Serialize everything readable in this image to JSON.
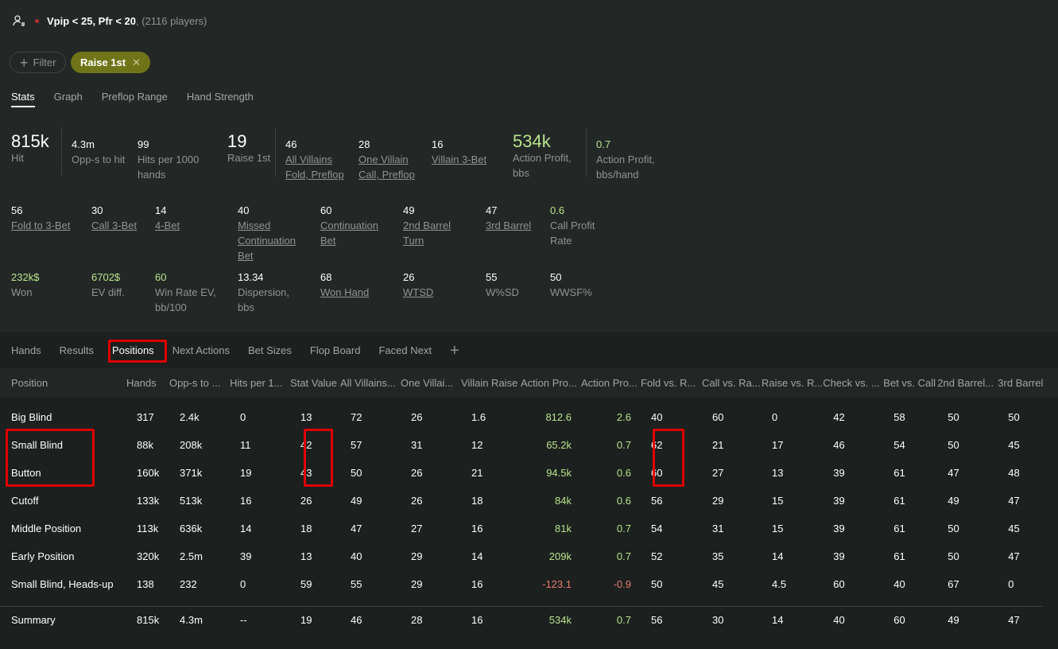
{
  "header": {
    "icon": "users-filter-icon",
    "title": "Vpip < 25, Pfr < 20",
    "count": ", (2116 players)"
  },
  "filters": {
    "add_label": "Filter",
    "active": "Raise 1st"
  },
  "top_tabs": [
    {
      "label": "Stats",
      "selected": true
    },
    {
      "label": "Graph"
    },
    {
      "label": "Preflop Range"
    },
    {
      "label": "Hand Strength"
    }
  ],
  "stats": [
    {
      "v": "815k",
      "l": "Hit",
      "big": true
    },
    {
      "v": "4.3m",
      "l": "Opp-s to hit"
    },
    {
      "v": "99",
      "l": "Hits per 1000\nhands"
    },
    {
      "v": "19",
      "l": "Raise 1st",
      "big": true
    },
    {
      "v": "46",
      "l": "All Villains\nFold, Preflop",
      "u": true
    },
    {
      "v": "28",
      "l": "One Villain\nCall, Preflop",
      "u": true
    },
    {
      "v": "16",
      "l": "Villain 3-Bet",
      "u": true
    },
    {
      "v": "534k",
      "l": "Action Profit,\nbbs",
      "big": true,
      "g": true
    },
    {
      "v": "0.7",
      "l": "Action Profit,\nbbs/hand",
      "g": true
    },
    {
      "v": "56",
      "l": "Fold to 3-Bet",
      "u": true
    },
    {
      "v": "30",
      "l": "Call 3-Bet",
      "u": true
    },
    {
      "v": "14",
      "l": "4-Bet",
      "u": true
    },
    {
      "v": "40",
      "l": "Missed\nContinuation\nBet",
      "u": true
    },
    {
      "v": "60",
      "l": "Continuation\nBet",
      "u": true
    },
    {
      "v": "49",
      "l": "2nd Barrel\nTurn",
      "u": true
    },
    {
      "v": "47",
      "l": "3rd Barrel",
      "u": true
    },
    {
      "v": "0.6",
      "l": "Call Profit\nRate",
      "g": true
    },
    {
      "v": "232k$",
      "l": "Won",
      "g": true
    },
    {
      "v": "6702$",
      "l": "EV diff.",
      "g": true
    },
    {
      "v": "60",
      "l": "Win Rate EV,\nbb/100",
      "g": true
    },
    {
      "v": "13.34",
      "l": "Dispersion,\nbbs"
    },
    {
      "v": "68",
      "l": "Won Hand",
      "u": true
    },
    {
      "v": "26",
      "l": "WTSD",
      "u": true
    },
    {
      "v": "55",
      "l": "W%SD"
    },
    {
      "v": "50",
      "l": "WWSF%"
    }
  ],
  "bottom_tabs": [
    {
      "label": "Hands"
    },
    {
      "label": "Results"
    },
    {
      "label": "Positions",
      "selected": true
    },
    {
      "label": "Next Actions"
    },
    {
      "label": "Bet Sizes"
    },
    {
      "label": "Flop Board"
    },
    {
      "label": "Faced Next"
    }
  ],
  "add_tab_icon": "plus-icon",
  "table": {
    "columns": [
      "Position",
      "Hands",
      "Opp-s to ...",
      "Hits per 1...",
      "Stat Value",
      "All Villains...",
      "One Villai...",
      "Villain Raise",
      "Action Pro...",
      "Action Pro...",
      "Fold vs. R...",
      "Call vs. Ra...",
      "Raise vs. R...",
      "Check vs. ...",
      "Bet vs. Call",
      "2nd Barrel...",
      "3rd Barrel"
    ],
    "rows": [
      [
        "Big Blind",
        "317",
        "2.4k",
        "0",
        "13",
        "72",
        "26",
        "1.6",
        "812.6",
        "2.6",
        "40",
        "60",
        "0",
        "42",
        "58",
        "50",
        "50"
      ],
      [
        "Small Blind",
        "88k",
        "208k",
        "11",
        "42",
        "57",
        "31",
        "12",
        "65.2k",
        "0.7",
        "62",
        "21",
        "17",
        "46",
        "54",
        "50",
        "45"
      ],
      [
        "Button",
        "160k",
        "371k",
        "19",
        "43",
        "50",
        "26",
        "21",
        "94.5k",
        "0.6",
        "60",
        "27",
        "13",
        "39",
        "61",
        "47",
        "48"
      ],
      [
        "Cutoff",
        "133k",
        "513k",
        "16",
        "26",
        "49",
        "26",
        "18",
        "84k",
        "0.6",
        "56",
        "29",
        "15",
        "39",
        "61",
        "49",
        "47"
      ],
      [
        "Middle Position",
        "113k",
        "636k",
        "14",
        "18",
        "47",
        "27",
        "16",
        "81k",
        "0.7",
        "54",
        "31",
        "15",
        "39",
        "61",
        "50",
        "45"
      ],
      [
        "Early Position",
        "320k",
        "2.5m",
        "39",
        "13",
        "40",
        "29",
        "14",
        "209k",
        "0.7",
        "52",
        "35",
        "14",
        "39",
        "61",
        "50",
        "47"
      ],
      [
        "Small Blind, Heads-up",
        "138",
        "232",
        "0",
        "59",
        "55",
        "29",
        "16",
        "-123.1",
        "-0.9",
        "50",
        "45",
        "4.5",
        "60",
        "40",
        "67",
        "0"
      ]
    ],
    "summary": [
      "Summary",
      "815k",
      "4.3m",
      "--",
      "19",
      "46",
      "28",
      "16",
      "534k",
      "0.7",
      "56",
      "30",
      "14",
      "40",
      "60",
      "49",
      "47"
    ]
  },
  "colors": {
    "positive": "#b9e38c",
    "negative": "#e87b6f",
    "chip": "#6f7418",
    "highlight": "#e00000"
  }
}
